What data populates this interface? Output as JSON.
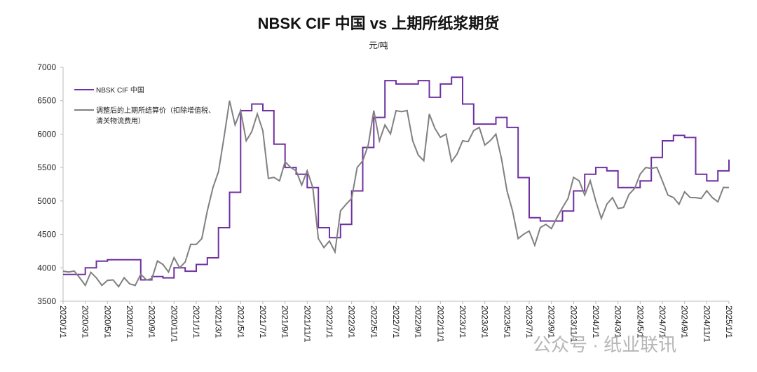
{
  "chart_data": {
    "type": "line",
    "title": "NBSK CIF 中国 vs 上期所纸浆期货",
    "ylabel": "元/吨",
    "ylim": [
      3500,
      7000
    ],
    "yticks": [
      3500,
      4000,
      4500,
      5000,
      5500,
      6000,
      6500,
      7000
    ],
    "xticks": [
      "2020/1/1",
      "2020/3/1",
      "2020/5/1",
      "2020/7/1",
      "2020/9/1",
      "2020/11/1",
      "2021/1/1",
      "2021/3/1",
      "2021/5/1",
      "2021/7/1",
      "2021/9/1",
      "2021/11/1",
      "2022/1/1",
      "2022/3/1",
      "2022/5/1",
      "2022/7/1",
      "2022/9/1",
      "2022/11/1",
      "2023/1/1",
      "2023/3/1",
      "2023/5/1",
      "2023/7/1",
      "2023/9/1",
      "2023/11/1",
      "2024/1/1",
      "2024/3/1",
      "2024/5/1",
      "2024/7/1",
      "2024/9/1",
      "2024/11/1",
      "2025/1/1"
    ],
    "legend_position": "top-left",
    "series": [
      {
        "name": "NBSK CIF 中国",
        "color": "#7030A0",
        "step": true,
        "frequency": "monthly",
        "values": [
          3900,
          3900,
          4000,
          4100,
          4120,
          4120,
          4120,
          3820,
          3870,
          3850,
          4000,
          3950,
          4050,
          4150,
          4600,
          5130,
          6350,
          6450,
          6350,
          5850,
          5500,
          5400,
          5200,
          4600,
          4450,
          4650,
          5150,
          5800,
          6250,
          6800,
          6750,
          6750,
          6800,
          6550,
          6750,
          6850,
          6450,
          6150,
          6150,
          6250,
          6100,
          5350,
          4750,
          4700,
          4700,
          4850,
          5150,
          5400,
          5500,
          5450,
          5200,
          5200,
          5300,
          5650,
          5900,
          5980,
          5950,
          5400,
          5300,
          5450,
          5550,
          5620
        ]
      },
      {
        "name": "调整后的上期所结算价（扣除增值税、清关物流费用）",
        "color": "#808080",
        "step": false,
        "frequency": "semi-monthly",
        "values": [
          3950,
          4000,
          3900,
          3850,
          3800,
          3880,
          3850,
          3800,
          3760,
          3820,
          3780,
          3800,
          3760,
          3800,
          3850,
          3820,
          3900,
          4050,
          4050,
          4000,
          4100,
          4000,
          4150,
          4300,
          4350,
          4500,
          4800,
          5200,
          5500,
          5900,
          6500,
          6200,
          6300,
          5900,
          6100,
          6250,
          6050,
          5400,
          5300,
          5300,
          5650,
          5450,
          5450,
          5300,
          5400,
          5200,
          4500,
          4250,
          4400,
          4300,
          4800,
          4950,
          5100,
          5450,
          5600,
          5900,
          6300,
          5900,
          6200,
          5950,
          6350,
          6400,
          6300,
          5900,
          5750,
          5550,
          6300,
          6150,
          5900,
          6000,
          5650,
          5650,
          5900,
          5950,
          6000,
          6100,
          5900,
          5850,
          6000,
          5700,
          5100,
          4850,
          4500,
          4450,
          4550,
          4400,
          4550,
          4650,
          4650,
          4700,
          4900,
          5100,
          5300,
          5300,
          5150,
          5250,
          5000,
          4800,
          4900,
          5050,
          4950,
          4850,
          5100,
          5250,
          5350,
          5500,
          5550,
          5450,
          5300,
          5150,
          5000,
          4950,
          5200,
          5000,
          5050,
          5100,
          5100,
          5050,
          5050,
          5150,
          5200
        ]
      }
    ]
  },
  "watermark": "公众号 · 纸业联讯"
}
